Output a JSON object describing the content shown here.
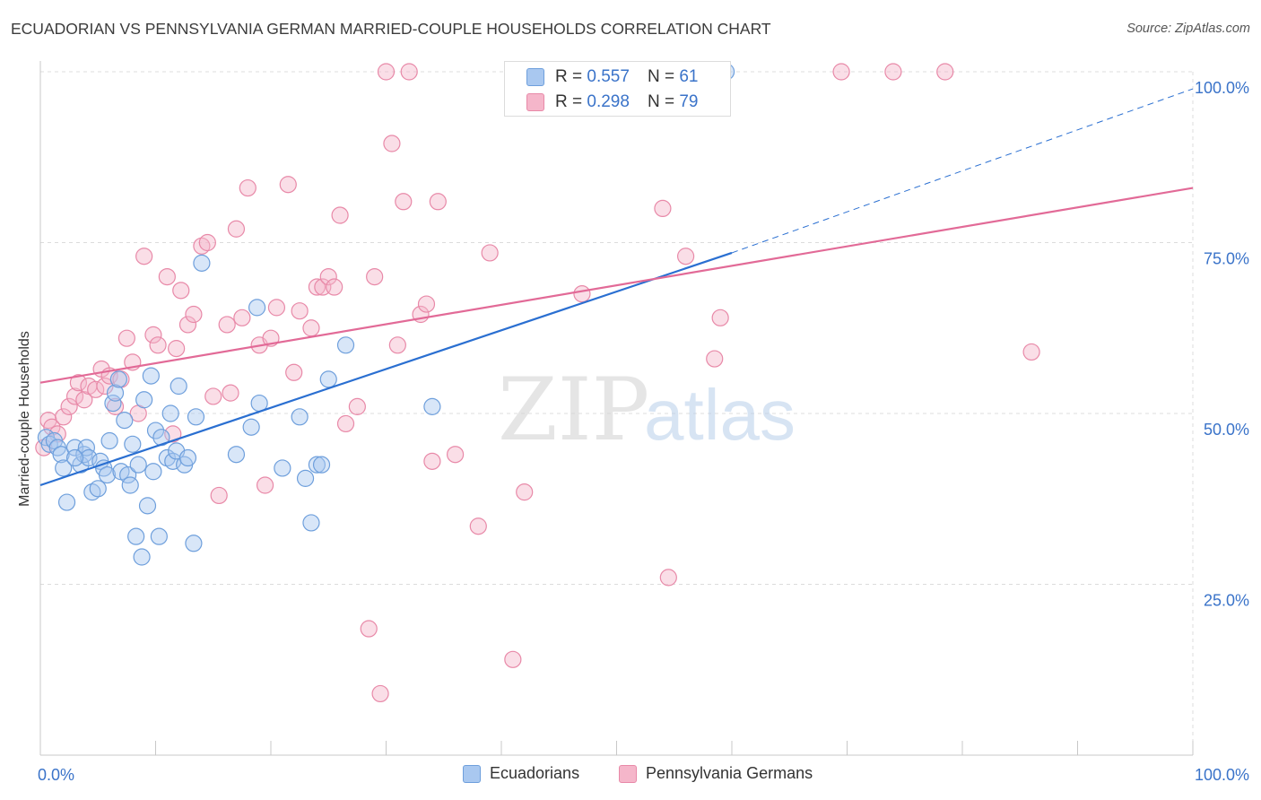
{
  "title": "ECUADORIAN VS PENNSYLVANIA GERMAN MARRIED-COUPLE HOUSEHOLDS CORRELATION CHART",
  "source": "Source: ZipAtlas.com",
  "watermark": {
    "zip": "ZIP",
    "atlas": "atlas"
  },
  "colors": {
    "ecuadorian_fill": "#a9c8f0",
    "ecuadorian_stroke": "#6e9fdc",
    "ecuadorian_line": "#2a6fd1",
    "pagerman_fill": "#f5b6ca",
    "pagerman_stroke": "#e889a8",
    "pagerman_line": "#e26a97",
    "tick_label": "#3a73c9",
    "grid": "#dcdcdc"
  },
  "legend": {
    "rows": [
      {
        "r_label": "R = ",
        "r_value": "0.557",
        "n_label": "N = ",
        "n_value": "61"
      },
      {
        "r_label": "R = ",
        "r_value": "0.298",
        "n_label": "N = ",
        "n_value": "79"
      }
    ],
    "series_names": [
      "Ecuadorians",
      "Pennsylvania Germans"
    ]
  },
  "chart_data": {
    "type": "scatter",
    "title": "ECUADORIAN VS PENNSYLVANIA GERMAN MARRIED-COUPLE HOUSEHOLDS CORRELATION CHART",
    "xlabel": "",
    "ylabel": "Married-couple Households",
    "xlim": [
      0,
      100
    ],
    "ylim": [
      0,
      100
    ],
    "x_tick_labels": [
      "0.0%",
      "100.0%"
    ],
    "y_ticks": [
      25,
      50,
      75,
      100
    ],
    "y_tick_labels": [
      "25.0%",
      "50.0%",
      "75.0%",
      "100.0%"
    ],
    "grid": true,
    "legend_position": "top-center",
    "series": [
      {
        "name": "Ecuadorians",
        "r": 0.557,
        "n": 61,
        "trend": {
          "x0": 0,
          "y0": 39.5,
          "x1": 60,
          "y1": 73.5,
          "dashed_to_x": 100,
          "dashed_to_y": 97.5
        },
        "points": [
          [
            0.5,
            46.5
          ],
          [
            0.8,
            45.5
          ],
          [
            1.2,
            46
          ],
          [
            1.5,
            45
          ],
          [
            1.8,
            44
          ],
          [
            2,
            42
          ],
          [
            2.3,
            37
          ],
          [
            3,
            45
          ],
          [
            3.5,
            42.5
          ],
          [
            3.8,
            44
          ],
          [
            4,
            45
          ],
          [
            4.2,
            43.5
          ],
          [
            4.5,
            38.5
          ],
          [
            5,
            39
          ],
          [
            5.2,
            43
          ],
          [
            5.5,
            42
          ],
          [
            5.8,
            41
          ],
          [
            6,
            46
          ],
          [
            6.3,
            51.5
          ],
          [
            6.5,
            53
          ],
          [
            6.8,
            55
          ],
          [
            7,
            41.5
          ],
          [
            7.3,
            49
          ],
          [
            7.6,
            41
          ],
          [
            7.8,
            39.5
          ],
          [
            8,
            45.5
          ],
          [
            8.3,
            32
          ],
          [
            8.5,
            42.5
          ],
          [
            8.8,
            29
          ],
          [
            9,
            52
          ],
          [
            9.3,
            36.5
          ],
          [
            9.6,
            55.5
          ],
          [
            9.8,
            41.5
          ],
          [
            10,
            47.5
          ],
          [
            10.3,
            32
          ],
          [
            10.5,
            46.5
          ],
          [
            11,
            43.5
          ],
          [
            11.3,
            50
          ],
          [
            11.5,
            43
          ],
          [
            11.8,
            44.5
          ],
          [
            12,
            54
          ],
          [
            12.5,
            42.5
          ],
          [
            12.8,
            43.5
          ],
          [
            13.3,
            31
          ],
          [
            13.5,
            49.5
          ],
          [
            14,
            72
          ],
          [
            17,
            44
          ],
          [
            18.8,
            65.5
          ],
          [
            18.3,
            48
          ],
          [
            19,
            51.5
          ],
          [
            21,
            42
          ],
          [
            22.5,
            49.5
          ],
          [
            23,
            40.5
          ],
          [
            23.5,
            34
          ],
          [
            24,
            42.5
          ],
          [
            24.4,
            42.5
          ],
          [
            25,
            55
          ],
          [
            26.5,
            60
          ],
          [
            34,
            51
          ],
          [
            59.5,
            100
          ],
          [
            3,
            43.5
          ]
        ]
      },
      {
        "name": "Pennsylvania Germans",
        "r": 0.298,
        "n": 79,
        "trend": {
          "x0": 0,
          "y0": 54.5,
          "x1": 100,
          "y1": 83
        },
        "points": [
          [
            0.3,
            45
          ],
          [
            0.7,
            49
          ],
          [
            1,
            48
          ],
          [
            1.5,
            47
          ],
          [
            2,
            49.5
          ],
          [
            2.5,
            51
          ],
          [
            3,
            52.5
          ],
          [
            3.3,
            54.5
          ],
          [
            3.8,
            52
          ],
          [
            4.2,
            54
          ],
          [
            4.8,
            53.5
          ],
          [
            5.3,
            56.5
          ],
          [
            5.6,
            54
          ],
          [
            6,
            55.5
          ],
          [
            6.5,
            51
          ],
          [
            7,
            55
          ],
          [
            7.5,
            61
          ],
          [
            8,
            57.5
          ],
          [
            8.5,
            50
          ],
          [
            9,
            73
          ],
          [
            9.8,
            61.5
          ],
          [
            10.2,
            60
          ],
          [
            11,
            70
          ],
          [
            11.5,
            47
          ],
          [
            11.8,
            59.5
          ],
          [
            12.2,
            68
          ],
          [
            12.8,
            63
          ],
          [
            13.3,
            64.5
          ],
          [
            14,
            74.5
          ],
          [
            14.5,
            75
          ],
          [
            15,
            52.5
          ],
          [
            15.5,
            38
          ],
          [
            16.2,
            63
          ],
          [
            16.5,
            53
          ],
          [
            17,
            77
          ],
          [
            17.5,
            64
          ],
          [
            18,
            83
          ],
          [
            19,
            60
          ],
          [
            19.5,
            39.5
          ],
          [
            20,
            61
          ],
          [
            20.5,
            65.5
          ],
          [
            21.5,
            83.5
          ],
          [
            22,
            56
          ],
          [
            22.5,
            65
          ],
          [
            23.5,
            62.5
          ],
          [
            24,
            68.5
          ],
          [
            24.5,
            68.5
          ],
          [
            25,
            70
          ],
          [
            25.5,
            68.5
          ],
          [
            26,
            79
          ],
          [
            26.5,
            48.5
          ],
          [
            27.5,
            51
          ],
          [
            28.5,
            18.5
          ],
          [
            29,
            70
          ],
          [
            29.5,
            9
          ],
          [
            30,
            100
          ],
          [
            30.5,
            89.5
          ],
          [
            31,
            60
          ],
          [
            31.5,
            81
          ],
          [
            32,
            100
          ],
          [
            33,
            64.5
          ],
          [
            33.5,
            66
          ],
          [
            34,
            43
          ],
          [
            34.5,
            81
          ],
          [
            36,
            44
          ],
          [
            38,
            33.5
          ],
          [
            39,
            73.5
          ],
          [
            41,
            14
          ],
          [
            42,
            38.5
          ],
          [
            47,
            67.5
          ],
          [
            54,
            80
          ],
          [
            54.5,
            26
          ],
          [
            56,
            73
          ],
          [
            58.5,
            58
          ],
          [
            59,
            64
          ],
          [
            69.5,
            100
          ],
          [
            74,
            100
          ],
          [
            78.5,
            100
          ],
          [
            86,
            59
          ]
        ]
      }
    ]
  }
}
